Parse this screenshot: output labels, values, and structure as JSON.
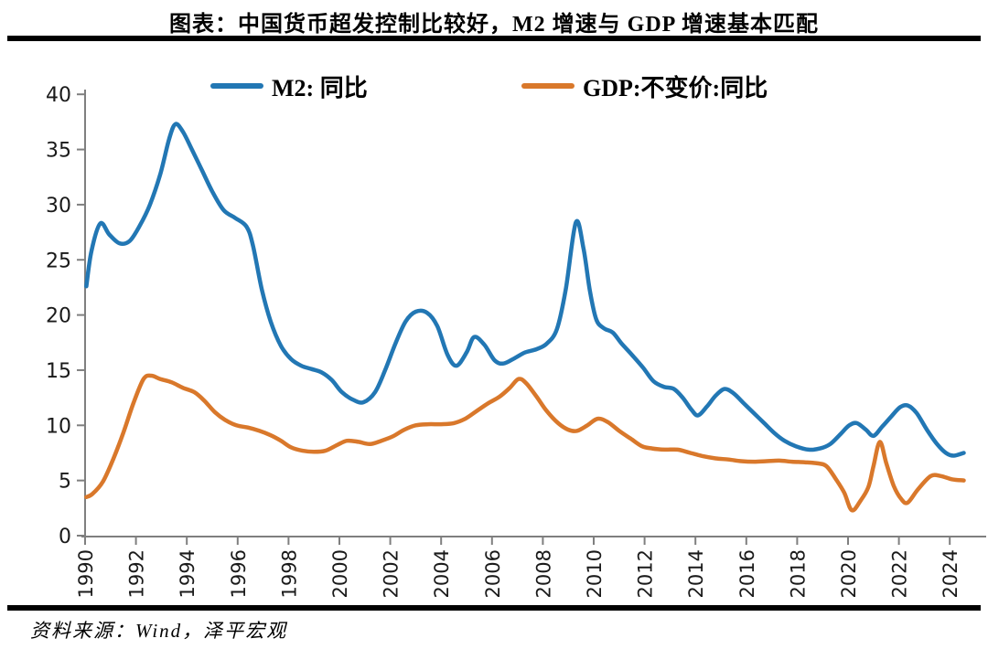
{
  "header": {
    "title": "图表：中国货币超发控制比较好，M2 增速与 GDP 增速基本匹配"
  },
  "footer": {
    "source": "资料来源：Wind，泽平宏观"
  },
  "chart_data": {
    "type": "line",
    "title": "图表：中国货币超发控制比较好，M2 增速与 GDP 增速基本匹配",
    "xlabel": "",
    "ylabel": "",
    "grid": false,
    "legend_position": "top",
    "axis_color": "#7f7f7f",
    "tick_label_color": "#1a1a1a",
    "x_axis": {
      "ticks": [
        1990,
        1992,
        1994,
        1996,
        1998,
        2000,
        2002,
        2004,
        2006,
        2008,
        2010,
        2012,
        2014,
        2016,
        2018,
        2020,
        2022,
        2024
      ],
      "range": [
        1990,
        2024.7
      ],
      "label_rotation": -90
    },
    "y_axis": {
      "ticks": [
        0,
        5,
        10,
        15,
        20,
        25,
        30,
        35,
        40
      ],
      "range": [
        0,
        40
      ]
    },
    "series": [
      {
        "name": "M2: 同比",
        "color": "#2277b4",
        "unit": "%",
        "points": [
          [
            1990.05,
            22.6
          ],
          [
            1990.25,
            25.8
          ],
          [
            1990.6,
            28.3
          ],
          [
            1990.95,
            27.3
          ],
          [
            1991.35,
            26.5
          ],
          [
            1991.75,
            26.7
          ],
          [
            1992.15,
            28.1
          ],
          [
            1992.55,
            30.0
          ],
          [
            1992.95,
            32.7
          ],
          [
            1993.3,
            35.9
          ],
          [
            1993.55,
            37.3
          ],
          [
            1993.85,
            36.6
          ],
          [
            1994.2,
            35.0
          ],
          [
            1994.6,
            33.1
          ],
          [
            1995.0,
            31.2
          ],
          [
            1995.45,
            29.5
          ],
          [
            1995.9,
            28.8
          ],
          [
            1996.35,
            28.0
          ],
          [
            1996.6,
            26.3
          ],
          [
            1996.95,
            22.3
          ],
          [
            1997.3,
            19.4
          ],
          [
            1997.7,
            17.2
          ],
          [
            1998.1,
            16.0
          ],
          [
            1998.5,
            15.4
          ],
          [
            1998.9,
            15.1
          ],
          [
            1999.3,
            14.8
          ],
          [
            1999.7,
            14.1
          ],
          [
            2000.1,
            13.0
          ],
          [
            2000.55,
            12.3
          ],
          [
            2000.95,
            12.1
          ],
          [
            2001.4,
            13.0
          ],
          [
            2001.8,
            15.0
          ],
          [
            2002.2,
            17.4
          ],
          [
            2002.6,
            19.4
          ],
          [
            2003.0,
            20.3
          ],
          [
            2003.45,
            20.2
          ],
          [
            2003.85,
            19.0
          ],
          [
            2004.25,
            16.4
          ],
          [
            2004.6,
            15.4
          ],
          [
            2005.0,
            16.6
          ],
          [
            2005.3,
            18.0
          ],
          [
            2005.7,
            17.3
          ],
          [
            2006.1,
            15.9
          ],
          [
            2006.45,
            15.6
          ],
          [
            2006.9,
            16.1
          ],
          [
            2007.3,
            16.6
          ],
          [
            2007.75,
            16.9
          ],
          [
            2008.15,
            17.4
          ],
          [
            2008.55,
            18.7
          ],
          [
            2008.9,
            22.3
          ],
          [
            2009.3,
            28.4
          ],
          [
            2009.6,
            26.0
          ],
          [
            2009.85,
            22.2
          ],
          [
            2010.1,
            19.6
          ],
          [
            2010.4,
            18.8
          ],
          [
            2010.75,
            18.4
          ],
          [
            2011.1,
            17.4
          ],
          [
            2011.5,
            16.4
          ],
          [
            2011.95,
            15.2
          ],
          [
            2012.35,
            14.0
          ],
          [
            2012.75,
            13.5
          ],
          [
            2013.15,
            13.3
          ],
          [
            2013.5,
            12.5
          ],
          [
            2013.85,
            11.4
          ],
          [
            2014.1,
            10.9
          ],
          [
            2014.45,
            11.7
          ],
          [
            2014.8,
            12.7
          ],
          [
            2015.15,
            13.3
          ],
          [
            2015.5,
            12.9
          ],
          [
            2015.9,
            12.0
          ],
          [
            2016.3,
            11.1
          ],
          [
            2016.7,
            10.2
          ],
          [
            2017.1,
            9.3
          ],
          [
            2017.5,
            8.6
          ],
          [
            2017.95,
            8.1
          ],
          [
            2018.45,
            7.8
          ],
          [
            2018.9,
            7.9
          ],
          [
            2019.3,
            8.3
          ],
          [
            2019.7,
            9.2
          ],
          [
            2020.05,
            10.0
          ],
          [
            2020.35,
            10.2
          ],
          [
            2020.7,
            9.6
          ],
          [
            2021.0,
            9.05
          ],
          [
            2021.35,
            9.9
          ],
          [
            2021.7,
            10.8
          ],
          [
            2022.05,
            11.65
          ],
          [
            2022.35,
            11.8
          ],
          [
            2022.7,
            11.1
          ],
          [
            2023.1,
            9.6
          ],
          [
            2023.5,
            8.3
          ],
          [
            2023.85,
            7.5
          ],
          [
            2024.15,
            7.25
          ],
          [
            2024.55,
            7.5
          ]
        ]
      },
      {
        "name": "GDP:不变价:同比",
        "color": "#d9782b",
        "unit": "%",
        "points": [
          [
            1990.05,
            3.5
          ],
          [
            1990.3,
            3.8
          ],
          [
            1990.7,
            4.9
          ],
          [
            1991.1,
            6.9
          ],
          [
            1991.5,
            9.3
          ],
          [
            1991.9,
            12.0
          ],
          [
            1992.3,
            14.2
          ],
          [
            1992.6,
            14.5
          ],
          [
            1992.95,
            14.2
          ],
          [
            1993.4,
            13.9
          ],
          [
            1993.85,
            13.4
          ],
          [
            1994.3,
            13.0
          ],
          [
            1994.7,
            12.2
          ],
          [
            1995.1,
            11.2
          ],
          [
            1995.5,
            10.5
          ],
          [
            1995.95,
            10.0
          ],
          [
            1996.4,
            9.8
          ],
          [
            1996.85,
            9.5
          ],
          [
            1997.3,
            9.1
          ],
          [
            1997.7,
            8.6
          ],
          [
            1998.1,
            8.0
          ],
          [
            1998.55,
            7.7
          ],
          [
            1999.0,
            7.6
          ],
          [
            1999.45,
            7.7
          ],
          [
            1999.9,
            8.2
          ],
          [
            2000.3,
            8.6
          ],
          [
            2000.75,
            8.5
          ],
          [
            2001.2,
            8.3
          ],
          [
            2001.65,
            8.6
          ],
          [
            2002.1,
            9.0
          ],
          [
            2002.55,
            9.6
          ],
          [
            2003.0,
            10.0
          ],
          [
            2003.5,
            10.1
          ],
          [
            2004.0,
            10.1
          ],
          [
            2004.5,
            10.2
          ],
          [
            2004.95,
            10.6
          ],
          [
            2005.4,
            11.3
          ],
          [
            2005.85,
            12.0
          ],
          [
            2006.3,
            12.6
          ],
          [
            2006.7,
            13.4
          ],
          [
            2007.05,
            14.2
          ],
          [
            2007.35,
            13.8
          ],
          [
            2007.75,
            12.6
          ],
          [
            2008.15,
            11.3
          ],
          [
            2008.6,
            10.2
          ],
          [
            2009.0,
            9.6
          ],
          [
            2009.35,
            9.5
          ],
          [
            2009.75,
            10.0
          ],
          [
            2010.15,
            10.6
          ],
          [
            2010.55,
            10.3
          ],
          [
            2011.0,
            9.5
          ],
          [
            2011.45,
            8.8
          ],
          [
            2011.9,
            8.1
          ],
          [
            2012.3,
            7.9
          ],
          [
            2012.8,
            7.8
          ],
          [
            2013.3,
            7.8
          ],
          [
            2013.8,
            7.5
          ],
          [
            2014.3,
            7.2
          ],
          [
            2014.8,
            7.0
          ],
          [
            2015.3,
            6.9
          ],
          [
            2015.8,
            6.75
          ],
          [
            2016.3,
            6.7
          ],
          [
            2016.8,
            6.75
          ],
          [
            2017.3,
            6.8
          ],
          [
            2017.8,
            6.7
          ],
          [
            2018.3,
            6.65
          ],
          [
            2018.8,
            6.55
          ],
          [
            2019.15,
            6.3
          ],
          [
            2019.5,
            5.2
          ],
          [
            2019.85,
            3.9
          ],
          [
            2020.15,
            2.3
          ],
          [
            2020.5,
            3.2
          ],
          [
            2020.8,
            4.4
          ],
          [
            2021.0,
            6.3
          ],
          [
            2021.25,
            8.5
          ],
          [
            2021.5,
            6.6
          ],
          [
            2021.8,
            4.5
          ],
          [
            2022.1,
            3.3
          ],
          [
            2022.35,
            3.0
          ],
          [
            2022.75,
            4.2
          ],
          [
            2023.25,
            5.4
          ],
          [
            2023.65,
            5.4
          ],
          [
            2024.1,
            5.1
          ],
          [
            2024.55,
            5.0
          ]
        ]
      }
    ]
  }
}
